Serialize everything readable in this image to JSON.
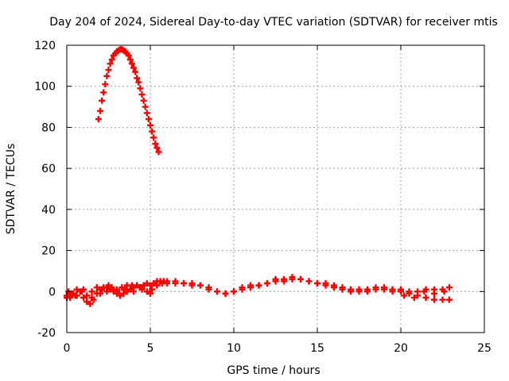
{
  "chart_data": {
    "type": "scatter",
    "title": "Day 204 of 2024, Sidereal Day-to-day VTEC variation (SDTVAR) for receiver mtis",
    "xlabel": "GPS time / hours",
    "ylabel": "SDTVAR / TECUs",
    "xlim": [
      0,
      25
    ],
    "ylim": [
      -20,
      120
    ],
    "xticks": [
      0,
      5,
      10,
      15,
      20,
      25
    ],
    "yticks": [
      -20,
      0,
      20,
      40,
      60,
      80,
      100,
      120
    ],
    "grid": true,
    "marker": "+",
    "color": "#ff0000",
    "series": [
      {
        "values": [
          [
            1.9,
            84
          ],
          [
            2.0,
            88
          ],
          [
            2.1,
            93
          ],
          [
            2.2,
            97
          ],
          [
            2.3,
            101
          ],
          [
            2.4,
            105
          ],
          [
            2.5,
            108
          ],
          [
            2.6,
            111
          ],
          [
            2.7,
            113
          ],
          [
            2.8,
            115
          ],
          [
            2.9,
            116
          ],
          [
            3.0,
            117
          ],
          [
            3.1,
            117.5
          ],
          [
            3.2,
            118
          ],
          [
            3.3,
            118
          ],
          [
            3.4,
            117.5
          ],
          [
            3.5,
            117
          ],
          [
            3.6,
            116
          ],
          [
            3.7,
            115
          ],
          [
            3.8,
            113
          ],
          [
            3.9,
            111
          ],
          [
            4.0,
            109
          ],
          [
            4.1,
            107
          ],
          [
            4.2,
            104
          ],
          [
            4.3,
            102
          ],
          [
            4.4,
            99
          ],
          [
            4.5,
            96
          ],
          [
            4.6,
            93
          ],
          [
            4.7,
            90
          ],
          [
            4.8,
            87
          ],
          [
            4.9,
            84
          ],
          [
            5.0,
            81
          ],
          [
            5.1,
            78
          ],
          [
            5.2,
            75
          ],
          [
            5.3,
            72
          ],
          [
            5.4,
            70
          ],
          [
            5.5,
            68
          ]
        ]
      },
      {
        "values": [
          [
            0.0,
            -2
          ],
          [
            0.2,
            -3
          ],
          [
            0.4,
            -1
          ],
          [
            0.6,
            -2
          ],
          [
            0.8,
            0
          ],
          [
            1.0,
            -3
          ],
          [
            1.2,
            -5
          ],
          [
            1.4,
            -6
          ],
          [
            1.6,
            -4
          ],
          [
            1.8,
            -1
          ],
          [
            2.0,
            1
          ],
          [
            2.2,
            2
          ],
          [
            2.4,
            0
          ],
          [
            2.6,
            1
          ],
          [
            2.8,
            0
          ],
          [
            3.0,
            -1
          ],
          [
            3.2,
            -2
          ],
          [
            3.4,
            -1
          ],
          [
            3.6,
            0
          ],
          [
            3.8,
            1
          ],
          [
            4.0,
            2
          ],
          [
            4.2,
            3
          ],
          [
            4.4,
            2
          ],
          [
            4.6,
            3
          ],
          [
            4.8,
            4
          ],
          [
            5.0,
            3
          ],
          [
            5.2,
            4
          ],
          [
            5.4,
            5
          ],
          [
            5.6,
            5
          ],
          [
            5.8,
            5
          ],
          [
            6.0,
            5
          ],
          [
            6.5,
            5
          ],
          [
            7.0,
            4
          ],
          [
            7.5,
            4
          ],
          [
            8.0,
            3
          ],
          [
            8.5,
            2
          ],
          [
            9.0,
            0
          ],
          [
            9.5,
            -1
          ],
          [
            10.0,
            0
          ],
          [
            10.5,
            2
          ],
          [
            11.0,
            3
          ],
          [
            11.5,
            3
          ],
          [
            12.0,
            4
          ],
          [
            12.5,
            6
          ],
          [
            13.0,
            6
          ],
          [
            13.5,
            7
          ],
          [
            14.0,
            6
          ],
          [
            14.5,
            5
          ],
          [
            15.0,
            4
          ],
          [
            15.5,
            4
          ],
          [
            16.0,
            3
          ],
          [
            16.5,
            2
          ],
          [
            17.0,
            1
          ],
          [
            17.5,
            1
          ],
          [
            18.0,
            1
          ],
          [
            18.5,
            2
          ],
          [
            19.0,
            2
          ],
          [
            19.5,
            1
          ],
          [
            20.0,
            1
          ],
          [
            20.5,
            0
          ],
          [
            21.0,
            -2
          ],
          [
            21.5,
            -3
          ],
          [
            22.0,
            -4
          ],
          [
            22.5,
            -4
          ],
          [
            22.9,
            -4
          ]
        ]
      },
      {
        "values": [
          [
            0.0,
            -3
          ],
          [
            0.3,
            -1
          ],
          [
            0.6,
            1
          ],
          [
            0.9,
            0
          ],
          [
            1.2,
            -2
          ],
          [
            1.5,
            0
          ],
          [
            1.8,
            2
          ],
          [
            2.1,
            1
          ],
          [
            2.4,
            2
          ],
          [
            2.7,
            2
          ],
          [
            3.0,
            1
          ],
          [
            3.3,
            2
          ],
          [
            3.6,
            3
          ],
          [
            3.9,
            3
          ],
          [
            4.2,
            3
          ],
          [
            4.5,
            1
          ],
          [
            4.8,
            0
          ],
          [
            5.1,
            1
          ],
          [
            5.4,
            3
          ],
          [
            5.7,
            4
          ],
          [
            6.0,
            4
          ],
          [
            6.5,
            4
          ],
          [
            7.0,
            4
          ],
          [
            7.5,
            3
          ],
          [
            8.0,
            3
          ],
          [
            8.5,
            1
          ],
          [
            9.0,
            0
          ],
          [
            9.5,
            -1
          ],
          [
            10.0,
            0
          ],
          [
            10.5,
            1
          ],
          [
            11.0,
            2
          ],
          [
            11.5,
            3
          ],
          [
            12.0,
            4
          ],
          [
            12.5,
            5
          ],
          [
            13.0,
            5
          ],
          [
            13.5,
            6
          ],
          [
            14.0,
            6
          ],
          [
            14.5,
            5
          ],
          [
            15.0,
            4
          ],
          [
            15.5,
            3
          ],
          [
            16.0,
            2
          ],
          [
            16.5,
            1
          ],
          [
            17.0,
            0
          ],
          [
            17.5,
            0
          ],
          [
            18.0,
            0
          ],
          [
            18.5,
            1
          ],
          [
            19.0,
            1
          ],
          [
            19.5,
            0
          ],
          [
            20.0,
            0
          ],
          [
            20.5,
            -1
          ],
          [
            21.0,
            0
          ],
          [
            21.5,
            1
          ],
          [
            22.0,
            1
          ],
          [
            22.5,
            1
          ],
          [
            22.9,
            2
          ]
        ]
      },
      {
        "values": [
          [
            0.1,
            0
          ],
          [
            0.5,
            -2
          ],
          [
            1.0,
            1
          ],
          [
            1.5,
            -3
          ],
          [
            2.0,
            -1
          ],
          [
            2.5,
            3
          ],
          [
            3.0,
            0
          ],
          [
            3.5,
            1
          ],
          [
            4.0,
            0
          ],
          [
            4.5,
            2
          ],
          [
            5.0,
            -1
          ],
          [
            20.2,
            -2
          ],
          [
            20.8,
            -3
          ],
          [
            21.4,
            0
          ],
          [
            22.0,
            -1
          ],
          [
            22.6,
            0
          ]
        ]
      }
    ]
  }
}
